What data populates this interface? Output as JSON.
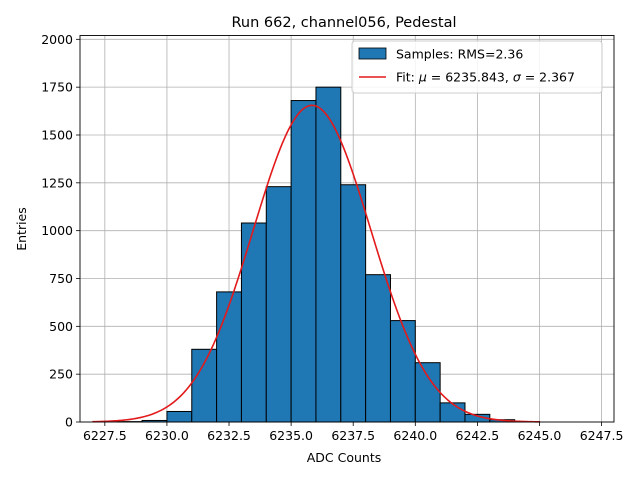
{
  "chart_data": {
    "type": "bar",
    "title": "Run 662, channel056, Pedestal",
    "xlabel": "ADC Counts",
    "ylabel": "Entries",
    "xlim": [
      6226.5,
      6248.0
    ],
    "ylim": [
      0,
      2020
    ],
    "grid": true,
    "legend_position": "top-right",
    "x_ticks": [
      6227.5,
      6230.0,
      6232.5,
      6235.0,
      6237.5,
      6240.0,
      6242.5,
      6245.0,
      6247.5
    ],
    "x_tick_labels": [
      "6227.5",
      "6230.0",
      "6232.5",
      "6235.0",
      "6237.5",
      "6240.0",
      "6242.5",
      "6245.0",
      "6247.5"
    ],
    "y_ticks": [
      0,
      250,
      500,
      750,
      1000,
      1250,
      1500,
      1750,
      2000
    ],
    "y_tick_labels": [
      "0",
      "250",
      "500",
      "750",
      "1000",
      "1250",
      "1500",
      "1750",
      "2000"
    ],
    "bins": [
      {
        "x0": 6227.0,
        "x1": 6228.0,
        "count": 0
      },
      {
        "x0": 6228.0,
        "x1": 6229.0,
        "count": 2
      },
      {
        "x0": 6229.0,
        "x1": 6230.0,
        "count": 8
      },
      {
        "x0": 6230.0,
        "x1": 6231.0,
        "count": 55
      },
      {
        "x0": 6231.0,
        "x1": 6232.0,
        "count": 380
      },
      {
        "x0": 6232.0,
        "x1": 6233.0,
        "count": 680
      },
      {
        "x0": 6233.0,
        "x1": 6234.0,
        "count": 1040
      },
      {
        "x0": 6234.0,
        "x1": 6235.0,
        "count": 1230
      },
      {
        "x0": 6235.0,
        "x1": 6236.0,
        "count": 1680
      },
      {
        "x0": 6236.0,
        "x1": 6237.0,
        "count": 1750
      },
      {
        "x0": 6237.0,
        "x1": 6238.0,
        "count": 1240
      },
      {
        "x0": 6238.0,
        "x1": 6239.0,
        "count": 770
      },
      {
        "x0": 6239.0,
        "x1": 6240.0,
        "count": 530
      },
      {
        "x0": 6240.0,
        "x1": 6241.0,
        "count": 310
      },
      {
        "x0": 6241.0,
        "x1": 6242.0,
        "count": 100
      },
      {
        "x0": 6242.0,
        "x1": 6243.0,
        "count": 40
      },
      {
        "x0": 6243.0,
        "x1": 6244.0,
        "count": 12
      },
      {
        "x0": 6244.0,
        "x1": 6245.0,
        "count": 2
      },
      {
        "x0": 6245.0,
        "x1": 6246.0,
        "count": 0
      },
      {
        "x0": 6246.0,
        "x1": 6247.0,
        "count": 0
      }
    ],
    "fit": {
      "type": "gaussian",
      "mu": 6235.843,
      "sigma": 2.367,
      "amplitude": 1655,
      "x_range": [
        6227.0,
        6245.0
      ]
    },
    "series": [
      {
        "name": "Samples: RMS=2.36",
        "kind": "histogram",
        "color": "#1f77b4"
      },
      {
        "name": "Fit",
        "kind": "line",
        "color": "#e31a1c"
      }
    ],
    "legend": [
      {
        "kind": "patch",
        "text": "Samples: RMS=2.36"
      },
      {
        "kind": "line",
        "prefix": "Fit: ",
        "mu_symbol": "μ",
        "mu_value": " = 6235.843, ",
        "sigma_symbol": "σ",
        "sigma_value": " = 2.367"
      }
    ]
  },
  "colors": {
    "bar_fill": "#1f77b4",
    "bar_edge": "#000000",
    "fit_line": "#e31a1c",
    "grid": "#b0b0b0"
  }
}
